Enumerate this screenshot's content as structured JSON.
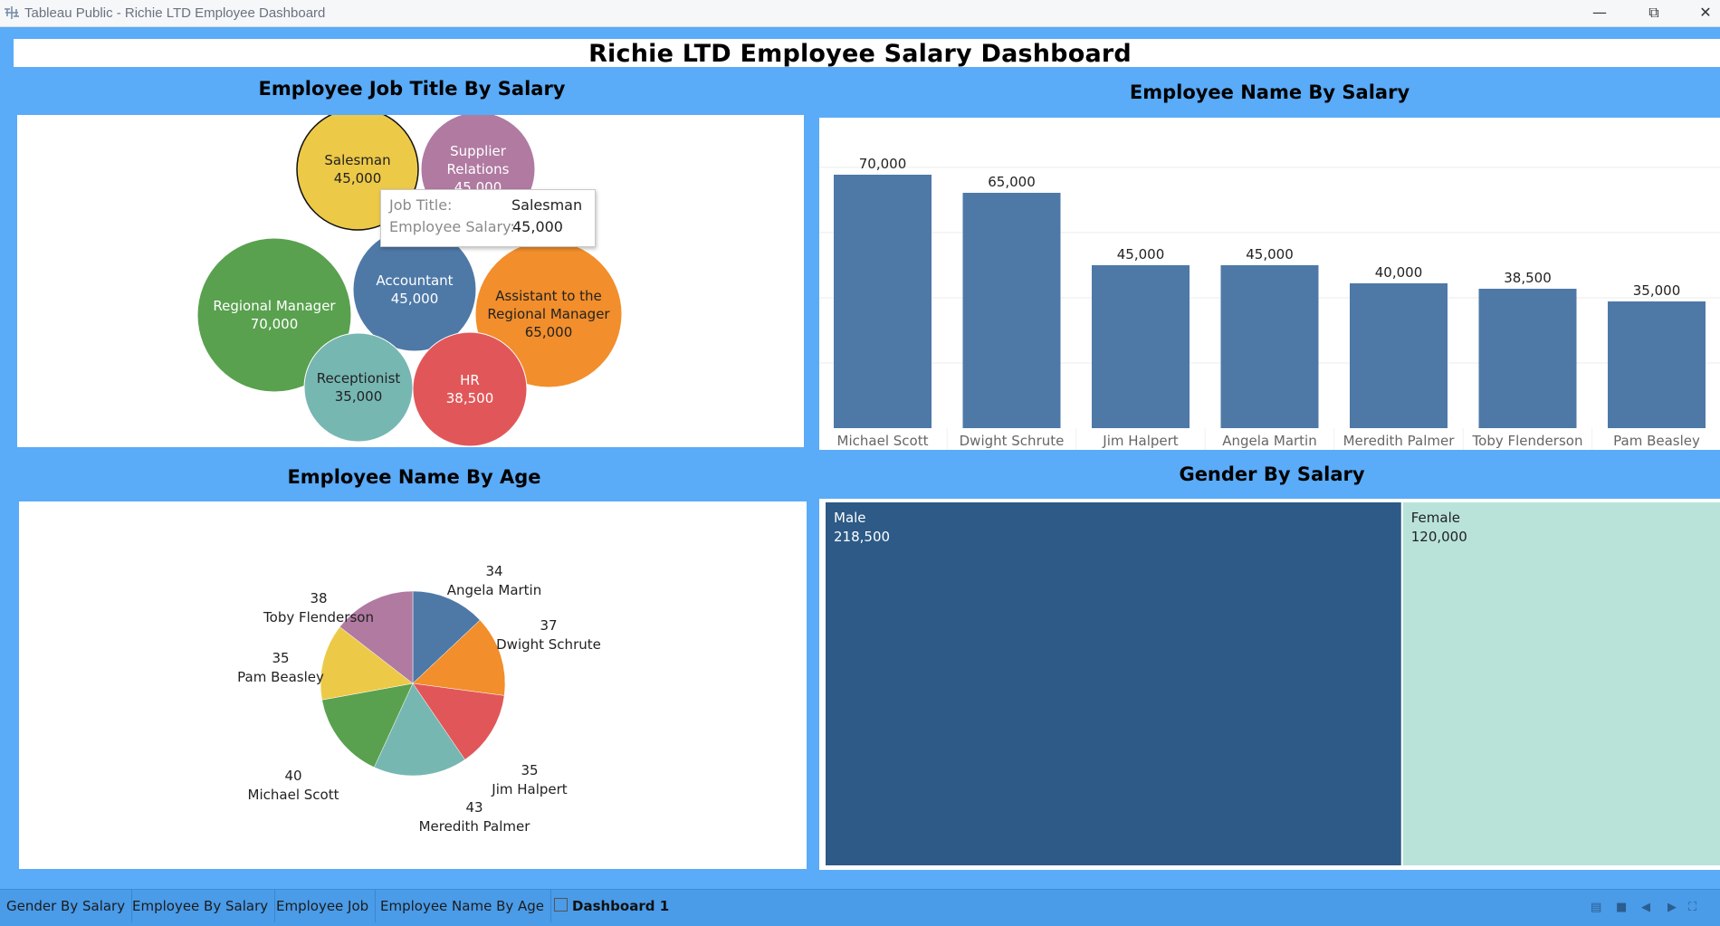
{
  "window": {
    "title": "Tableau Public - Richie LTD Employee Dashboard"
  },
  "dashboard": {
    "title": "Richie LTD Employee Salary Dashboard"
  },
  "sheets": {
    "job_title": {
      "title": "Employee Job Title By Salary"
    },
    "name_salary": {
      "title": "Employee Name By Salary"
    },
    "name_age": {
      "title": "Employee Name By Age"
    },
    "gender_salary": {
      "title": "Gender By Salary"
    }
  },
  "tooltip": {
    "rows": [
      {
        "key": "Job Title:",
        "value": "Salesman"
      },
      {
        "key": "Employee Salary:",
        "value": "45,000"
      }
    ]
  },
  "tabs": [
    {
      "label": "Gender By Salary"
    },
    {
      "label": "Employee By Salary"
    },
    {
      "label": "Employee Job"
    },
    {
      "label": "Employee Name By Age"
    },
    {
      "label": "Dashboard 1"
    }
  ],
  "colors": {
    "background": "#5aabf8",
    "bar": "#4e79a7",
    "male": "#2d5a87",
    "female": "#b9e3d9"
  },
  "chart_data": [
    {
      "type": "bubble",
      "title": "Employee Job Title By Salary",
      "series": [
        {
          "name": "Salesman",
          "value": 45000,
          "label": "45,000",
          "color": "#edc948"
        },
        {
          "name": "Supplier Relations",
          "value": 45000,
          "label": "45,000",
          "color": "#b07aa1"
        },
        {
          "name": "Regional Manager",
          "value": 70000,
          "label": "70,000",
          "color": "#59a14f"
        },
        {
          "name": "Accountant",
          "value": 45000,
          "label": "45,000",
          "color": "#4e79a7"
        },
        {
          "name": "Assistant to the Regional Manager",
          "value": 65000,
          "label": "65,000",
          "color": "#f28e2b"
        },
        {
          "name": "Receptionist",
          "value": 35000,
          "label": "35,000",
          "color": "#76b7b2"
        },
        {
          "name": "HR",
          "value": 38500,
          "label": "38,500",
          "color": "#e15759"
        }
      ]
    },
    {
      "type": "bar",
      "title": "Employee Name By Salary",
      "categories": [
        "Michael Scott",
        "Dwight Schrute",
        "Jim Halpert",
        "Angela Martin",
        "Meredith Palmer",
        "Toby Flenderson",
        "Pam Beasley"
      ],
      "values": [
        70000,
        65000,
        45000,
        45000,
        40000,
        38500,
        35000
      ],
      "labels": [
        "70,000",
        "65,000",
        "45,000",
        "45,000",
        "40,000",
        "38,500",
        "35,000"
      ],
      "ylim": [
        0,
        75000
      ],
      "grid": true
    },
    {
      "type": "pie",
      "title": "Employee Name By Age",
      "series": [
        {
          "name": "Angela Martin",
          "value": 34,
          "color": "#4e79a7"
        },
        {
          "name": "Dwight Schrute",
          "value": 37,
          "color": "#f28e2b"
        },
        {
          "name": "Jim Halpert",
          "value": 35,
          "color": "#e15759"
        },
        {
          "name": "Meredith Palmer",
          "value": 43,
          "color": "#76b7b2"
        },
        {
          "name": "Michael Scott",
          "value": 40,
          "color": "#59a14f"
        },
        {
          "name": "Pam Beasley",
          "value": 35,
          "color": "#edc948"
        },
        {
          "name": "Toby Flenderson",
          "value": 38,
          "color": "#b07aa1"
        }
      ]
    },
    {
      "type": "treemap",
      "title": "Gender By Salary",
      "series": [
        {
          "name": "Male",
          "value": 218500,
          "label": "218,500",
          "color": "#2d5a87"
        },
        {
          "name": "Female",
          "value": 120000,
          "label": "120,000",
          "color": "#b9e3d9"
        }
      ]
    }
  ]
}
